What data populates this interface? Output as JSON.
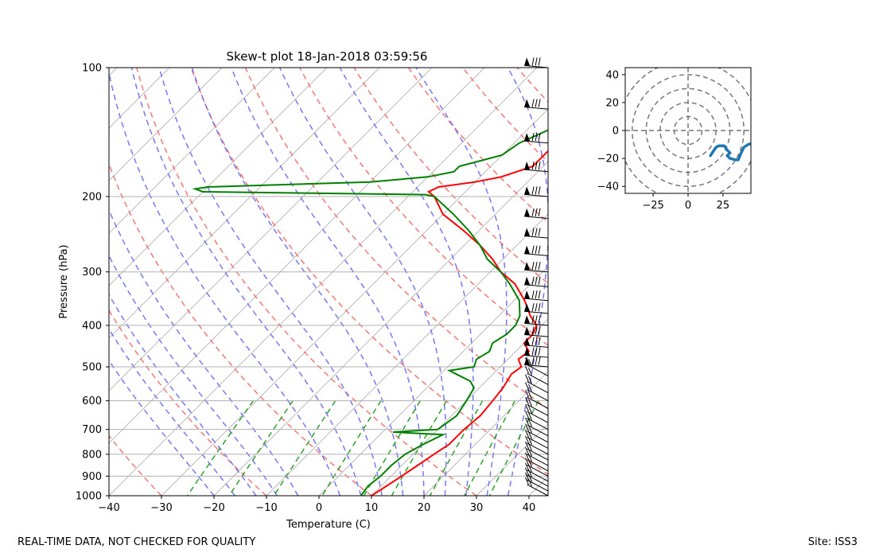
{
  "chart_data": [
    {
      "type": "skewt",
      "title": "Skew-t plot 18-Jan-2018 03:59:56",
      "xlabel": "Temperature (C)",
      "ylabel": "Pressure (hPa)",
      "xlim": [
        -40,
        40
      ],
      "ylim": [
        1000,
        100
      ],
      "y_scale": "log",
      "grid": true,
      "x_ticks": [
        "−40",
        "−30",
        "−20",
        "−10",
        "0",
        "10",
        "20",
        "30",
        "40"
      ],
      "y_ticks": [
        "100",
        "200",
        "300",
        "400",
        "500",
        "600",
        "700",
        "800",
        "900",
        "1000"
      ],
      "colors": {
        "temperature": "#ff0000",
        "dewpoint": "#008000",
        "dry_adiabats": "#f06060",
        "moist_adiabats": "#6060f0",
        "mixing_ratio": "#2ca02c",
        "isotherms": "#b0b0b0"
      },
      "series": [
        {
          "role": "temperature",
          "p": [
            1000,
            950,
            900,
            850,
            800,
            760,
            700,
            650,
            600,
            560,
            520,
            500,
            480,
            460,
            440,
            420,
            400,
            380,
            350,
            320,
            300,
            280,
            260,
            240,
            220,
            200,
            195,
            190,
            185,
            180,
            170,
            160,
            150,
            140,
            130,
            120,
            110,
            100
          ],
          "t": [
            10,
            11,
            12,
            13,
            14,
            15,
            15,
            15.5,
            15,
            14.5,
            13.5,
            14,
            12,
            12.5,
            10,
            10,
            9,
            6,
            2,
            -3,
            -8,
            -12,
            -17,
            -23,
            -30,
            -35,
            -37,
            -36,
            -30,
            -26,
            -22,
            -22,
            -22,
            -20,
            -20,
            -14,
            -10,
            -7
          ]
        },
        {
          "role": "dewpoint",
          "p": [
            1000,
            950,
            900,
            850,
            800,
            760,
            720,
            710,
            700,
            650,
            600,
            560,
            540,
            520,
            510,
            500,
            480,
            460,
            440,
            420,
            400,
            380,
            350,
            320,
            300,
            280,
            260,
            240,
            220,
            200,
            198,
            195,
            192,
            190,
            185,
            180,
            175,
            170,
            165,
            160,
            150,
            140,
            130,
            120,
            110,
            100
          ],
          "t": [
            8,
            7.5,
            8,
            8,
            8.5,
            10,
            12,
            2,
            10,
            11,
            10,
            9,
            7,
            3,
            1,
            5,
            4,
            5,
            4,
            5,
            5,
            4,
            1,
            -4,
            -8,
            -13,
            -17,
            -22,
            -28,
            -35,
            -37,
            -80,
            -82,
            -80,
            -50,
            -40,
            -36,
            -36,
            -33,
            -30,
            -29,
            -26,
            -25,
            -22,
            -17,
            -14
          ]
        }
      ]
    },
    {
      "type": "hodograph",
      "xlim": [
        -45,
        45
      ],
      "ylim": [
        -45,
        45
      ],
      "x_ticks": [
        "−25",
        "0",
        "25"
      ],
      "y_ticks": [
        "40",
        "20",
        "0",
        "−20",
        "−40"
      ],
      "rings": [
        10,
        20,
        30,
        40,
        50
      ],
      "u": [
        16,
        18,
        20,
        22,
        26,
        28,
        30,
        28,
        30,
        34,
        36,
        38,
        40,
        43,
        46,
        48
      ],
      "v": [
        -18,
        -15,
        -12,
        -11,
        -11,
        -14,
        -16,
        -18,
        -20,
        -21,
        -21,
        -16,
        -12,
        -10,
        -9,
        -8
      ],
      "line_color": "#1f77b4"
    }
  ],
  "footer": {
    "left": "REAL-TIME DATA, NOT CHECKED FOR QUALITY",
    "right": "Site: ISS3"
  }
}
